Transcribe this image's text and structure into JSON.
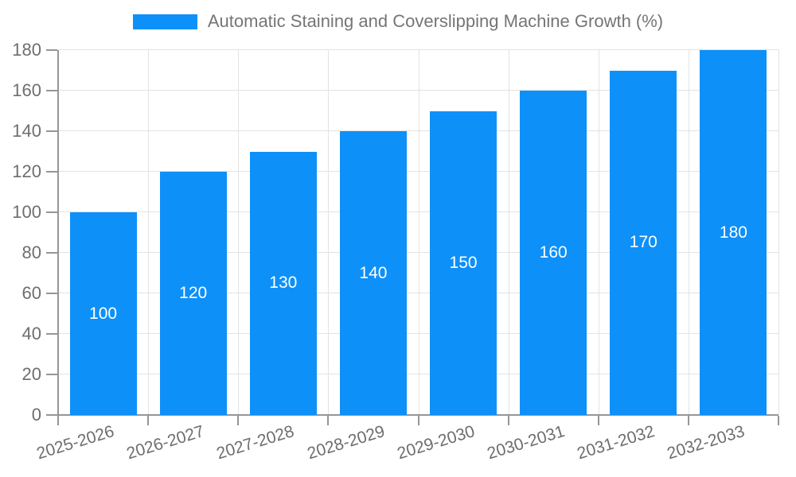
{
  "legend": {
    "label": "Automatic Staining and Coverslipping Machine Growth (%)"
  },
  "chart_data": {
    "type": "bar",
    "title": "Automatic Staining and Coverslipping Machine Growth (%)",
    "categories": [
      "2025-2026",
      "2026-2027",
      "2027-2028",
      "2028-2029",
      "2029-2030",
      "2030-2031",
      "2031-2032",
      "2032-2033"
    ],
    "values": [
      100,
      120,
      130,
      140,
      150,
      160,
      170,
      180
    ],
    "xlabel": "",
    "ylabel": "",
    "ylim": [
      0,
      180
    ],
    "yticks": [
      0,
      20,
      40,
      60,
      80,
      100,
      120,
      140,
      160,
      180
    ],
    "grid": "both",
    "legend_position": "top",
    "value_labels": "inside-center",
    "colors": {
      "bar": "#0E90F9",
      "bar_value_text": "#FFFFFF",
      "axis": "#969696",
      "grid": "#E3E3E3",
      "tick_text": "#6E6E6E",
      "legend_text": "#757575"
    }
  }
}
